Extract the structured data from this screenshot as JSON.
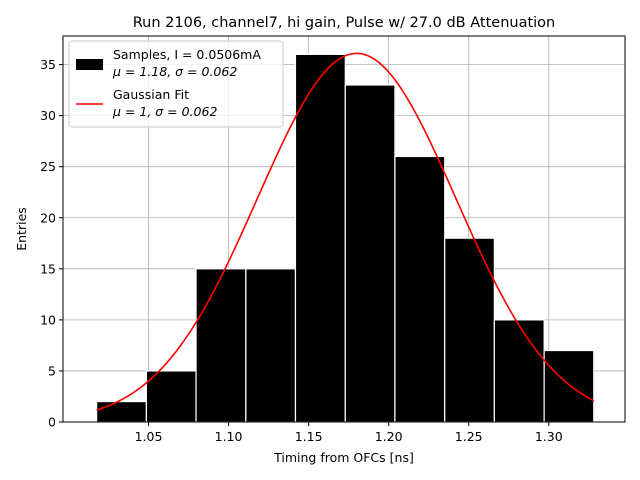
{
  "chart_data": {
    "type": "bar",
    "title": "Run 2106, channel7, hi gain, Pulse w/ 27.0 dB Attenuation",
    "xlabel": "Timing from OFCs [ns]",
    "ylabel": "Entries",
    "xlim": [
      0.9966,
      1.3476
    ],
    "ylim": [
      0,
      37.8
    ],
    "grid": true,
    "legend_position": "top-left",
    "x_ticks": [
      1.05,
      1.1,
      1.15,
      1.2,
      1.25,
      1.3
    ],
    "x_tick_labels": [
      "1.05",
      "1.10",
      "1.15",
      "1.20",
      "1.25",
      "1.30"
    ],
    "y_ticks": [
      0,
      5,
      10,
      15,
      20,
      25,
      30,
      35
    ],
    "y_tick_labels": [
      "0",
      "5",
      "10",
      "15",
      "20",
      "25",
      "30",
      "35"
    ],
    "bin_edges": [
      1.0176,
      1.0487,
      1.0797,
      1.1108,
      1.1418,
      1.1729,
      1.2039,
      1.235,
      1.266,
      1.2971,
      1.3281
    ],
    "counts": [
      2,
      5,
      15,
      15,
      36,
      33,
      26,
      18,
      10,
      7
    ],
    "series": [
      {
        "name": "Samples, I = 0.0506mA",
        "name_line2": "μ = 1.18, σ = 0.062",
        "kind": "histogram",
        "color": "#000000",
        "edgecolor": "#ffffff"
      },
      {
        "name": "Gaussian Fit",
        "name_line2": "μ = 1, σ = 0.062",
        "kind": "line",
        "color": "#ff0000",
        "amplitude": 36.1,
        "mean": 1.18,
        "sigma": 0.062,
        "x_range": [
          1.0176,
          1.3281
        ]
      }
    ]
  }
}
